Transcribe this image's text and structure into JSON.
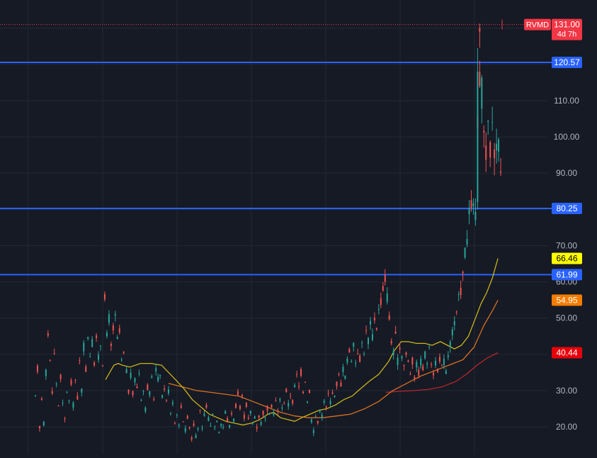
{
  "chart_data": {
    "type": "candlestick",
    "title": "",
    "xlabel": "",
    "ylabel": "",
    "ylim": [
      13,
      135
    ],
    "y_ticks": [
      {
        "value": 20,
        "label": "20.00"
      },
      {
        "value": 30,
        "label": "30.00"
      },
      {
        "value": 40,
        "label": "40.00"
      },
      {
        "value": 50,
        "label": "50.00"
      },
      {
        "value": 60,
        "label": "60.00"
      },
      {
        "value": 70,
        "label": "70.00"
      },
      {
        "value": 90,
        "label": "90.00"
      },
      {
        "value": 100,
        "label": "100.00"
      },
      {
        "value": 110,
        "label": "110.00"
      }
    ],
    "grid": true,
    "colors": {
      "background": "#161a25",
      "grid": "#232835",
      "up": "#26a69a",
      "down": "#ef5350",
      "horizontal_line": "#2962ff",
      "ma_fast": "#c9b41a",
      "ma_mid": "#d9701f",
      "ma_slow": "#b7262b",
      "price_line": "#f23645"
    },
    "symbol_label": {
      "ticker": "RVMD",
      "price": "131.00",
      "countdown": "4d 7h",
      "value": 131.0
    },
    "horizontal_lines": [
      {
        "value": 120.57,
        "label": "120.57"
      },
      {
        "value": 80.25,
        "label": "80.25"
      },
      {
        "value": 61.99,
        "label": "61.99"
      }
    ],
    "ma_tags": [
      {
        "value": 66.46,
        "label": "66.46",
        "color": "#ffff00",
        "text_color": "#000000"
      },
      {
        "value": 54.95,
        "label": "54.95",
        "color": "#f57c00",
        "text_color": "#ffffff"
      },
      {
        "value": 40.44,
        "label": "40.44",
        "color": "#e8000b",
        "text_color": "#ffffff"
      }
    ],
    "candle_segments": [
      [
        [
          0,
          28
        ],
        [
          3,
          36
        ],
        [
          6,
          20
        ],
        [
          9,
          28
        ],
        [
          12,
          21
        ],
        [
          15,
          35
        ],
        [
          18,
          46
        ],
        [
          21,
          38
        ],
        [
          24,
          30
        ],
        [
          27,
          40
        ],
        [
          30,
          32
        ],
        [
          33,
          26
        ],
        [
          36,
          34
        ],
        [
          39,
          26
        ],
        [
          42,
          22
        ],
        [
          45,
          30
        ],
        [
          48,
          27
        ],
        [
          51,
          32
        ],
        [
          54,
          26
        ],
        [
          57,
          33
        ],
        [
          60,
          28
        ],
        [
          63,
          38
        ],
        [
          66,
          30
        ],
        [
          69,
          42
        ],
        [
          72,
          36
        ],
        [
          75,
          45
        ],
        [
          78,
          40
        ],
        [
          81,
          43
        ],
        [
          84,
          38
        ],
        [
          87,
          44
        ],
        [
          90,
          39
        ],
        [
          93,
          43
        ],
        [
          96,
          38
        ],
        [
          99,
          55
        ],
        [
          102,
          45
        ],
        [
          105,
          50
        ],
        [
          108,
          42
        ],
        [
          111,
          47
        ],
        [
          114,
          50
        ],
        [
          117,
          44
        ],
        [
          120,
          46
        ],
        [
          123,
          38
        ],
        [
          126,
          40
        ]
      ],
      [
        [
          126,
          40
        ],
        [
          130,
          35
        ],
        [
          133,
          30
        ],
        [
          136,
          34
        ],
        [
          139,
          29
        ],
        [
          142,
          33
        ],
        [
          145,
          31
        ],
        [
          148,
          35
        ],
        [
          151,
          28
        ],
        [
          154,
          30
        ],
        [
          157,
          25
        ],
        [
          160,
          31
        ],
        [
          163,
          29
        ],
        [
          166,
          33
        ],
        [
          169,
          28
        ],
        [
          172,
          36
        ],
        [
          175,
          33
        ],
        [
          178,
          35
        ],
        [
          181,
          28
        ],
        [
          184,
          31
        ],
        [
          187,
          27
        ],
        [
          190,
          30
        ],
        [
          193,
          24
        ],
        [
          196,
          27
        ],
        [
          199,
          21
        ],
        [
          202,
          24
        ],
        [
          205,
          20
        ],
        [
          208,
          26
        ],
        [
          211,
          22
        ],
        [
          214,
          19
        ],
        [
          217,
          23
        ],
        [
          220,
          20
        ],
        [
          223,
          17
        ],
        [
          226,
          21
        ],
        [
          229,
          17
        ],
        [
          232,
          20
        ],
        [
          235,
          24
        ],
        [
          238,
          19
        ],
        [
          241,
          23
        ],
        [
          244,
          26
        ],
        [
          247,
          22
        ],
        [
          250,
          20
        ],
        [
          253,
          24
        ],
        [
          256,
          20
        ],
        [
          259,
          22
        ],
        [
          262,
          19
        ],
        [
          265,
          21
        ],
        [
          268,
          20
        ],
        [
          271,
          24
        ],
        [
          274,
          22
        ],
        [
          277,
          20
        ],
        [
          280,
          24
        ],
        [
          283,
          22
        ],
        [
          286,
          26
        ],
        [
          289,
          29
        ],
        [
          292,
          25
        ],
        [
          295,
          28
        ],
        [
          298,
          23
        ],
        [
          301,
          26
        ],
        [
          304,
          22
        ],
        [
          307,
          24
        ],
        [
          310,
          21
        ],
        [
          313,
          23
        ],
        [
          316,
          20
        ],
        [
          319,
          23
        ],
        [
          322,
          21
        ],
        [
          325,
          24
        ],
        [
          328,
          22
        ],
        [
          331,
          25
        ],
        [
          334,
          23
        ],
        [
          337,
          26
        ],
        [
          340,
          24
        ],
        [
          343,
          27
        ],
        [
          346,
          24
        ],
        [
          349,
          28
        ],
        [
          352,
          25
        ],
        [
          355,
          27
        ],
        [
          358,
          30
        ],
        [
          361,
          26
        ],
        [
          364,
          29
        ],
        [
          367,
          27
        ],
        [
          370,
          31
        ],
        [
          373,
          34
        ],
        [
          376,
          31
        ],
        [
          379,
          35
        ],
        [
          382,
          30
        ],
        [
          385,
          33
        ],
        [
          388,
          27
        ],
        [
          391,
          30
        ],
        [
          394,
          22
        ],
        [
          397,
          19
        ],
        [
          400,
          23
        ],
        [
          403,
          21
        ],
        [
          406,
          25
        ],
        [
          409,
          23
        ],
        [
          412,
          27
        ],
        [
          415,
          25
        ],
        [
          418,
          29
        ],
        [
          421,
          27
        ],
        [
          424,
          30
        ],
        [
          427,
          28
        ],
        [
          430,
          32
        ],
        [
          433,
          34
        ],
        [
          436,
          32
        ],
        [
          439,
          36
        ],
        [
          442,
          34
        ],
        [
          445,
          38
        ],
        [
          448,
          41
        ],
        [
          451,
          39
        ],
        [
          454,
          42
        ],
        [
          457,
          38
        ],
        [
          460,
          41
        ],
        [
          463,
          39
        ],
        [
          466,
          43
        ],
        [
          469,
          41
        ],
        [
          472,
          46
        ],
        [
          475,
          44
        ],
        [
          478,
          48
        ],
        [
          481,
          45
        ],
        [
          484,
          50
        ],
        [
          487,
          48
        ],
        [
          490,
          52
        ],
        [
          493,
          55
        ],
        [
          496,
          58
        ],
        [
          499,
          61
        ],
        [
          502,
          56
        ]
      ],
      [
        [
          502,
          56
        ],
        [
          505,
          50
        ],
        [
          508,
          44
        ],
        [
          511,
          40
        ],
        [
          514,
          45
        ],
        [
          517,
          38
        ],
        [
          520,
          42
        ],
        [
          523,
          40
        ],
        [
          526,
          37
        ],
        [
          529,
          40
        ],
        [
          532,
          38
        ],
        [
          535,
          35
        ],
        [
          538,
          38
        ],
        [
          541,
          34
        ],
        [
          544,
          37
        ],
        [
          547,
          35
        ],
        [
          550,
          38
        ],
        [
          553,
          36
        ],
        [
          556,
          40
        ],
        [
          559,
          38
        ],
        [
          562,
          41
        ],
        [
          565,
          38
        ],
        [
          568,
          35
        ],
        [
          571,
          38
        ],
        [
          574,
          35
        ],
        [
          577,
          39
        ],
        [
          580,
          36
        ],
        [
          583,
          38
        ],
        [
          586,
          35
        ],
        [
          589,
          40
        ],
        [
          592,
          43
        ],
        [
          595,
          46
        ],
        [
          598,
          48
        ],
        [
          601,
          51
        ],
        [
          604,
          55
        ],
        [
          607,
          58
        ],
        [
          610,
          62
        ],
        [
          613,
          68
        ],
        [
          616,
          72
        ],
        [
          619,
          78
        ],
        [
          622,
          82
        ],
        [
          625,
          80
        ],
        [
          628,
          79
        ]
      ],
      [
        [
          628,
          79
        ],
        [
          631,
          102
        ],
        [
          634,
          125
        ],
        [
          637,
          112
        ],
        [
          640,
          100
        ],
        [
          643,
          96
        ],
        [
          646,
          101
        ],
        [
          649,
          97
        ],
        [
          652,
          104
        ],
        [
          655,
          98
        ],
        [
          658,
          96
        ],
        [
          661,
          100
        ],
        [
          664,
          94
        ],
        [
          667,
          97
        ]
      ]
    ],
    "ma_fast": [
      [
        100,
        33
      ],
      [
        106,
        35
      ],
      [
        112,
        37
      ],
      [
        118,
        37.5
      ],
      [
        124,
        37
      ],
      [
        135,
        36.5
      ],
      [
        150,
        37.5
      ],
      [
        165,
        37.5
      ],
      [
        180,
        37
      ],
      [
        190,
        35
      ],
      [
        200,
        33
      ],
      [
        212,
        30.5
      ],
      [
        224,
        27.5
      ],
      [
        236,
        25.5
      ],
      [
        248,
        23.5
      ],
      [
        260,
        22.5
      ],
      [
        272,
        21.5
      ],
      [
        284,
        21
      ],
      [
        296,
        20.5
      ],
      [
        308,
        21
      ],
      [
        320,
        22
      ],
      [
        332,
        23.5
      ],
      [
        340,
        24
      ],
      [
        350,
        22.5
      ],
      [
        360,
        22
      ],
      [
        370,
        21.5
      ],
      [
        380,
        22.5
      ],
      [
        392,
        23.5
      ],
      [
        404,
        24.5
      ],
      [
        416,
        25
      ],
      [
        428,
        26
      ],
      [
        440,
        27.5
      ],
      [
        452,
        28.5
      ],
      [
        464,
        30.5
      ],
      [
        476,
        32.5
      ],
      [
        490,
        34.5
      ],
      [
        504,
        38
      ],
      [
        512,
        41
      ],
      [
        522,
        43.5
      ],
      [
        532,
        43.5
      ],
      [
        544,
        43
      ],
      [
        556,
        43
      ],
      [
        566,
        42.5
      ],
      [
        578,
        43.5
      ],
      [
        588,
        42.5
      ],
      [
        598,
        41.5
      ],
      [
        608,
        42.5
      ],
      [
        618,
        45
      ],
      [
        628,
        50
      ],
      [
        636,
        54
      ],
      [
        644,
        57
      ],
      [
        652,
        61
      ],
      [
        660,
        66.46
      ]
    ],
    "ma_mid": [
      [
        190,
        32
      ],
      [
        210,
        31
      ],
      [
        230,
        30
      ],
      [
        250,
        29.5
      ],
      [
        270,
        29
      ],
      [
        290,
        28.5
      ],
      [
        310,
        27
      ],
      [
        330,
        25.5
      ],
      [
        350,
        24
      ],
      [
        370,
        23
      ],
      [
        390,
        22.5
      ],
      [
        410,
        22.5
      ],
      [
        430,
        23
      ],
      [
        450,
        23.5
      ],
      [
        470,
        25
      ],
      [
        490,
        27
      ],
      [
        510,
        30
      ],
      [
        530,
        32
      ],
      [
        550,
        34
      ],
      [
        570,
        35.5
      ],
      [
        590,
        37
      ],
      [
        610,
        38.5
      ],
      [
        626,
        42
      ],
      [
        640,
        48
      ],
      [
        652,
        52
      ],
      [
        660,
        54.95
      ]
    ],
    "ma_slow": [
      [
        500,
        29.5
      ],
      [
        520,
        29.8
      ],
      [
        540,
        30
      ],
      [
        560,
        30.3
      ],
      [
        580,
        31
      ],
      [
        600,
        32.5
      ],
      [
        615,
        34.5
      ],
      [
        630,
        37
      ],
      [
        645,
        39
      ],
      [
        660,
        40.44
      ]
    ]
  }
}
